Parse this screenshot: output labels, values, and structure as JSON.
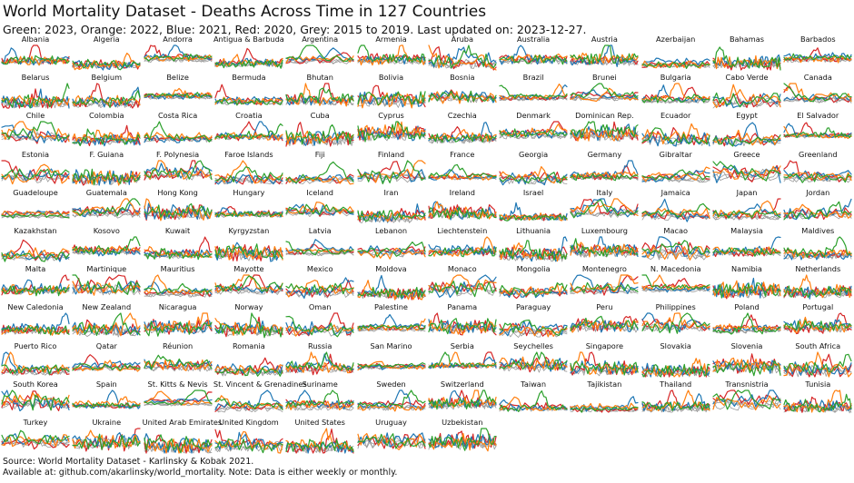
{
  "chart_data": {
    "type": "line",
    "title": "World Mortality Dataset - Deaths Across Time in 127 Countries",
    "subtitle": "Green: 2023, Orange: 2022, Blue: 2021, Red: 2020, Grey: 2015 to 2019. Last updated on: 2023-12-27.",
    "legend": [
      {
        "name": "2023",
        "color": "#2ca02c"
      },
      {
        "name": "2022",
        "color": "#ff7f0e"
      },
      {
        "name": "2021",
        "color": "#1f77b4"
      },
      {
        "name": "2020",
        "color": "#d62728"
      },
      {
        "name": "2015 to 2019",
        "color": "#9a9a9a"
      }
    ],
    "countries": [
      "Albania",
      "Algeria",
      "Andorra",
      "Antigua & Barbuda",
      "Argentina",
      "Armenia",
      "Aruba",
      "Australia",
      "Austria",
      "Azerbaijan",
      "Bahamas",
      "Barbados",
      "Belarus",
      "Belgium",
      "Belize",
      "Bermuda",
      "Bhutan",
      "Bolivia",
      "Bosnia",
      "Brazil",
      "Brunei",
      "Bulgaria",
      "Cabo Verde",
      "Canada",
      "Chile",
      "Colombia",
      "Costa Rica",
      "Croatia",
      "Cuba",
      "Cyprus",
      "Czechia",
      "Denmark",
      "Dominican Rep.",
      "Ecuador",
      "Egypt",
      "El Salvador",
      "Estonia",
      "F. Guiana",
      "F. Polynesia",
      "Faroe Islands",
      "Fiji",
      "Finland",
      "France",
      "Georgia",
      "Germany",
      "Gibraltar",
      "Greece",
      "Greenland",
      "Guadeloupe",
      "Guatemala",
      "Hong Kong",
      "Hungary",
      "Iceland",
      "Iran",
      "Ireland",
      "Israel",
      "Italy",
      "Jamaica",
      "Japan",
      "Jordan",
      "Kazakhstan",
      "Kosovo",
      "Kuwait",
      "Kyrgyzstan",
      "Latvia",
      "Lebanon",
      "Liechtenstein",
      "Lithuania",
      "Luxembourg",
      "Macao",
      "Malaysia",
      "Maldives",
      "Malta",
      "Martinique",
      "Mauritius",
      "Mayotte",
      "Mexico",
      "Moldova",
      "Monaco",
      "Mongolia",
      "Montenegro",
      "N. Macedonia",
      "Namibia",
      "Netherlands",
      "New Caledonia",
      "New Zealand",
      "Nicaragua",
      "Norway",
      "Oman",
      "Palestine",
      "Panama",
      "Paraguay",
      "Peru",
      "Philippines",
      "Poland",
      "Portugal",
      "Puerto Rico",
      "Qatar",
      "Réunion",
      "Romania",
      "Russia",
      "San Marino",
      "Serbia",
      "Seychelles",
      "Singapore",
      "Slovakia",
      "Slovenia",
      "South Africa",
      "South Korea",
      "Spain",
      "St. Kitts & Nevis",
      "St. Vincent & Grenadines",
      "Suriname",
      "Sweden",
      "Switzerland",
      "Taiwan",
      "Tajikistan",
      "Thailand",
      "Transnistria",
      "Tunisia",
      "Turkey",
      "Ukraine",
      "United Arab Emirates",
      "United Kingdom",
      "United States",
      "Uruguay",
      "Uzbekistan"
    ],
    "series_per_country": [
      "2015 to 2019",
      "2020",
      "2021",
      "2022",
      "2023"
    ],
    "xlabel": "",
    "ylabel": "",
    "grid": false,
    "axes": false
  },
  "footer": {
    "line1": "Source: World Mortality Dataset - Karlinsky & Kobak 2021.",
    "line2": "Available at: github.com/akarlinsky/world_mortality. Note: Data is either weekly or monthly."
  }
}
